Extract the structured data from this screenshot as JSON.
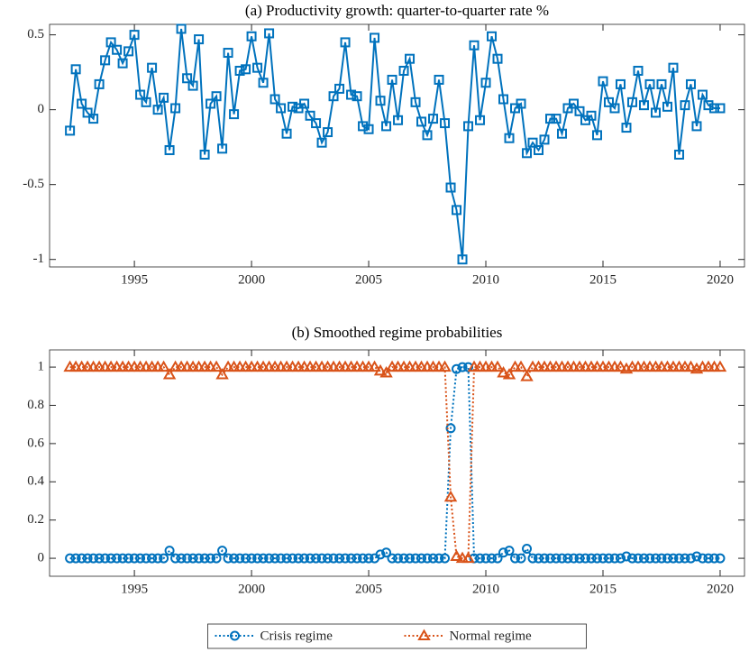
{
  "chart_data": [
    {
      "type": "line",
      "title": "(a) Productivity growth: quarter-to-quarter rate %",
      "x": [
        1992.25,
        1992.5,
        1992.75,
        1993,
        1993.25,
        1993.5,
        1993.75,
        1994,
        1994.25,
        1994.5,
        1994.75,
        1995,
        1995.25,
        1995.5,
        1995.75,
        1996,
        1996.25,
        1996.5,
        1996.75,
        1997,
        1997.25,
        1997.5,
        1997.75,
        1998,
        1998.25,
        1998.5,
        1998.75,
        1999,
        1999.25,
        1999.5,
        1999.75,
        2000,
        2000.25,
        2000.5,
        2000.75,
        2001,
        2001.25,
        2001.5,
        2001.75,
        2002,
        2002.25,
        2002.5,
        2002.75,
        2003,
        2003.25,
        2003.5,
        2003.75,
        2004,
        2004.25,
        2004.5,
        2004.75,
        2005,
        2005.25,
        2005.5,
        2005.75,
        2006,
        2006.25,
        2006.5,
        2006.75,
        2007,
        2007.25,
        2007.5,
        2007.75,
        2008,
        2008.25,
        2008.5,
        2008.75,
        2009,
        2009.25,
        2009.5,
        2009.75,
        2010,
        2010.25,
        2010.5,
        2010.75,
        2011,
        2011.25,
        2011.5,
        2011.75,
        2012,
        2012.25,
        2012.5,
        2012.75,
        2013,
        2013.25,
        2013.5,
        2013.75,
        2014,
        2014.25,
        2014.5,
        2014.75,
        2015,
        2015.25,
        2015.5,
        2015.75,
        2016,
        2016.25,
        2016.5,
        2016.75,
        2017,
        2017.25,
        2017.5,
        2017.75,
        2018,
        2018.25,
        2018.5,
        2018.75,
        2019,
        2019.25,
        2019.5,
        2019.75,
        2020
      ],
      "series": [
        {
          "color": "#0072bd",
          "marker": "square",
          "linestyle": "solid",
          "values": [
            -0.14,
            0.27,
            0.04,
            -0.02,
            -0.06,
            0.17,
            0.33,
            0.45,
            0.4,
            0.31,
            0.39,
            0.5,
            0.1,
            0.05,
            0.28,
            0.0,
            0.08,
            -0.27,
            0.01,
            0.54,
            0.21,
            0.16,
            0.47,
            -0.3,
            0.04,
            0.09,
            -0.26,
            0.38,
            -0.03,
            0.26,
            0.27,
            0.49,
            0.28,
            0.18,
            0.51,
            0.07,
            0.01,
            -0.16,
            0.02,
            0.01,
            0.04,
            -0.04,
            -0.09,
            -0.22,
            -0.15,
            0.09,
            0.14,
            0.45,
            0.1,
            0.09,
            -0.11,
            -0.13,
            0.48,
            0.06,
            -0.11,
            0.2,
            -0.07,
            0.26,
            0.34,
            0.05,
            -0.08,
            -0.17,
            -0.06,
            0.2,
            -0.09,
            -0.52,
            -0.67,
            -1.0,
            -0.11,
            0.43,
            -0.07,
            0.18,
            0.49,
            0.34,
            0.07,
            -0.19,
            0.01,
            0.04,
            -0.29,
            -0.22,
            -0.27,
            -0.2,
            -0.06,
            -0.06,
            -0.16,
            0.01,
            0.04,
            -0.01,
            -0.07,
            -0.04,
            -0.17,
            0.19,
            0.05,
            0.01,
            0.17,
            -0.12,
            0.05,
            0.26,
            0.03,
            0.17,
            -0.02,
            0.17,
            0.02,
            0.28,
            -0.3,
            0.03,
            0.17,
            -0.11,
            0.1,
            0.03,
            0.01,
            0.01
          ]
        }
      ],
      "xlim": [
        1991.38,
        2021.04
      ],
      "xticks": [
        1995,
        2000,
        2005,
        2010,
        2015,
        2020
      ],
      "ylim": [
        -1.05,
        0.57
      ],
      "yticks": [
        0.5,
        0,
        -0.5,
        -1
      ]
    },
    {
      "type": "line",
      "title": "(b) Smoothed regime probabilities",
      "x": [
        1992.25,
        1992.5,
        1992.75,
        1993,
        1993.25,
        1993.5,
        1993.75,
        1994,
        1994.25,
        1994.5,
        1994.75,
        1995,
        1995.25,
        1995.5,
        1995.75,
        1996,
        1996.25,
        1996.5,
        1996.75,
        1997,
        1997.25,
        1997.5,
        1997.75,
        1998,
        1998.25,
        1998.5,
        1998.75,
        1999,
        1999.25,
        1999.5,
        1999.75,
        2000,
        2000.25,
        2000.5,
        2000.75,
        2001,
        2001.25,
        2001.5,
        2001.75,
        2002,
        2002.25,
        2002.5,
        2002.75,
        2003,
        2003.25,
        2003.5,
        2003.75,
        2004,
        2004.25,
        2004.5,
        2004.75,
        2005,
        2005.25,
        2005.5,
        2005.75,
        2006,
        2006.25,
        2006.5,
        2006.75,
        2007,
        2007.25,
        2007.5,
        2007.75,
        2008,
        2008.25,
        2008.5,
        2008.75,
        2009,
        2009.25,
        2009.5,
        2009.75,
        2010,
        2010.25,
        2010.5,
        2010.75,
        2011,
        2011.25,
        2011.5,
        2011.75,
        2012,
        2012.25,
        2012.5,
        2012.75,
        2013,
        2013.25,
        2013.5,
        2013.75,
        2014,
        2014.25,
        2014.5,
        2014.75,
        2015,
        2015.25,
        2015.5,
        2015.75,
        2016,
        2016.25,
        2016.5,
        2016.75,
        2017,
        2017.25,
        2017.5,
        2017.75,
        2018,
        2018.25,
        2018.5,
        2018.75,
        2019,
        2019.25,
        2019.5,
        2019.75,
        2020
      ],
      "series": [
        {
          "name": "Crisis regime",
          "color": "#0072bd",
          "marker": "circle",
          "linestyle": "dotted",
          "values": [
            0,
            0,
            0,
            0,
            0,
            0,
            0,
            0,
            0,
            0,
            0,
            0,
            0,
            0,
            0,
            0,
            0,
            0.04,
            0,
            0,
            0,
            0,
            0,
            0,
            0,
            0,
            0.04,
            0,
            0,
            0,
            0,
            0,
            0,
            0,
            0,
            0,
            0,
            0,
            0,
            0,
            0,
            0,
            0,
            0,
            0,
            0,
            0,
            0,
            0,
            0,
            0,
            0,
            0,
            0.02,
            0.03,
            0,
            0,
            0,
            0,
            0,
            0,
            0,
            0,
            0,
            0,
            0.68,
            0.99,
            1,
            1,
            0,
            0,
            0,
            0,
            0,
            0.03,
            0.04,
            0,
            0,
            0.05,
            0,
            0,
            0,
            0,
            0,
            0,
            0,
            0,
            0,
            0,
            0,
            0,
            0,
            0,
            0,
            0,
            0.01,
            0,
            0,
            0,
            0,
            0,
            0,
            0,
            0,
            0,
            0,
            0,
            0.01,
            0,
            0,
            0,
            0
          ]
        },
        {
          "name": "Normal regime",
          "color": "#d95319",
          "marker": "triangle",
          "linestyle": "dotted",
          "values": [
            1,
            1,
            1,
            1,
            1,
            1,
            1,
            1,
            1,
            1,
            1,
            1,
            1,
            1,
            1,
            1,
            1,
            0.96,
            1,
            1,
            1,
            1,
            1,
            1,
            1,
            1,
            0.96,
            1,
            1,
            1,
            1,
            1,
            1,
            1,
            1,
            1,
            1,
            1,
            1,
            1,
            1,
            1,
            1,
            1,
            1,
            1,
            1,
            1,
            1,
            1,
            1,
            1,
            1,
            0.98,
            0.97,
            1,
            1,
            1,
            1,
            1,
            1,
            1,
            1,
            1,
            1,
            0.32,
            0.01,
            0,
            0,
            1,
            1,
            1,
            1,
            1,
            0.97,
            0.96,
            1,
            1,
            0.95,
            1,
            1,
            1,
            1,
            1,
            1,
            1,
            1,
            1,
            1,
            1,
            1,
            1,
            1,
            1,
            1,
            0.99,
            1,
            1,
            1,
            1,
            1,
            1,
            1,
            1,
            1,
            1,
            1,
            0.99,
            1,
            1,
            1,
            1
          ]
        }
      ],
      "xlim": [
        1991.38,
        2021.04
      ],
      "xticks": [
        1995,
        2000,
        2005,
        2010,
        2015,
        2020
      ],
      "ylim": [
        -0.094,
        1.09
      ],
      "yticks": [
        0,
        0.2,
        0.4,
        0.6,
        0.8,
        1
      ],
      "legend": "south-outside"
    }
  ]
}
